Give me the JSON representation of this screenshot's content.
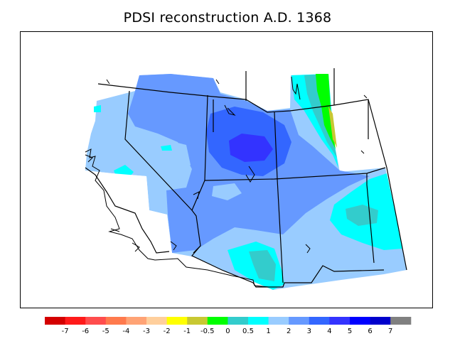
{
  "title": "PDSI reconstruction A.D. 1368",
  "colorbar": {
    "colors": [
      "#d40000",
      "#ff1a1a",
      "#ff4d4d",
      "#ff7a4d",
      "#ffa375",
      "#ffcf9c",
      "#ffff00",
      "#c8c832",
      "#00ff00",
      "#33cccc",
      "#00ffff",
      "#99ccff",
      "#6699ff",
      "#3366ff",
      "#3333ff",
      "#0000ff",
      "#0000cc",
      "#808080"
    ],
    "labels": [
      "-7",
      "-6",
      "-5",
      "-4",
      "-3",
      "-2",
      "-1",
      "-0.5",
      "0",
      "0.5",
      "1",
      "2",
      "3",
      "4",
      "5",
      "6",
      "7"
    ]
  },
  "palette": {
    "light_blue": "#99ccff",
    "mid_blue": "#6699ff",
    "blue": "#3366ff",
    "deep_blue": "#3333ff",
    "cyan": "#00ffff",
    "teal": "#33cccc",
    "green": "#00ff00",
    "olive": "#c8c832"
  }
}
